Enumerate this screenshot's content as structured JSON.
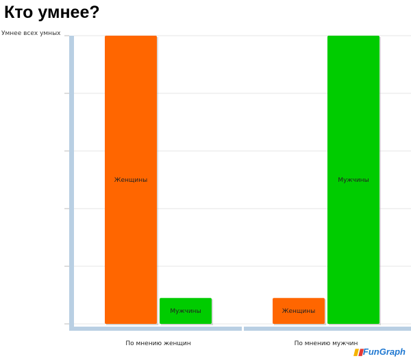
{
  "title": "Кто умнее?",
  "logo": "FunGraph",
  "chart_data": {
    "type": "bar",
    "title": "Кто умнее?",
    "ylabel_top": "Умнее всех умных",
    "categories": [
      "По мнению женщин",
      "По мнению мужчин"
    ],
    "series": [
      {
        "name": "Женщины",
        "color": "#ff6600",
        "values": [
          100,
          9
        ]
      },
      {
        "name": "Мужчины",
        "color": "#00cc00",
        "values": [
          9,
          100
        ]
      }
    ],
    "ylim": [
      0,
      100
    ],
    "grid": true,
    "legend": "none (bars labeled inline)"
  }
}
